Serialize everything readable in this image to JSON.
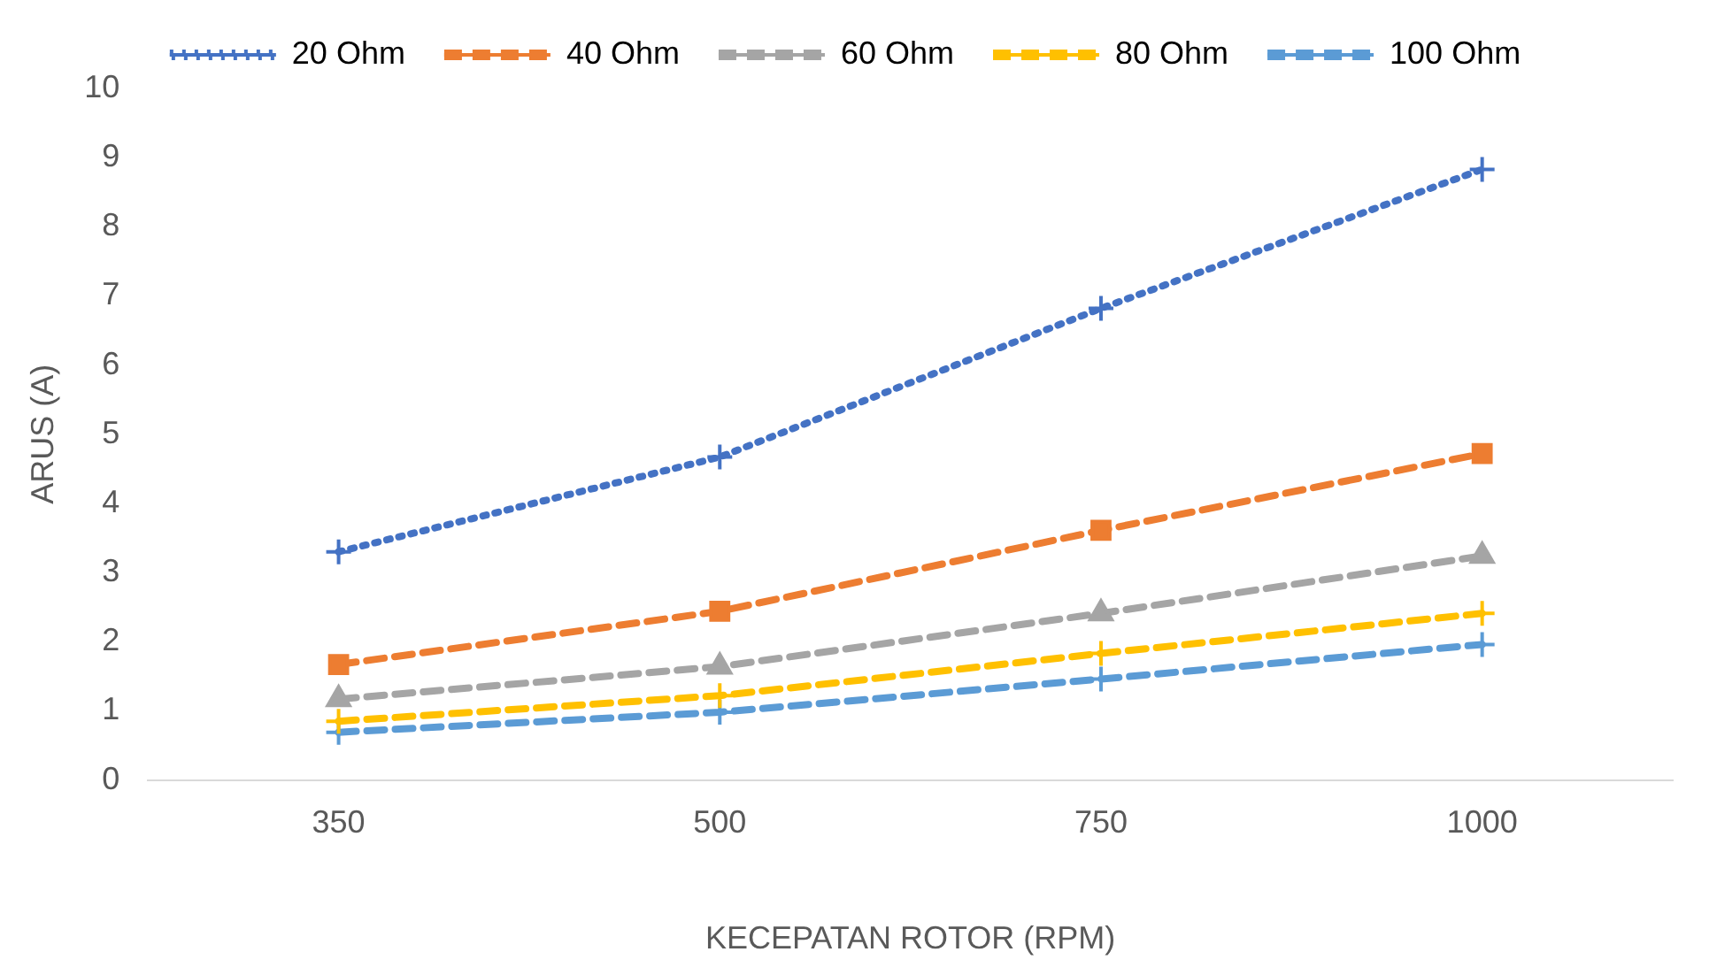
{
  "chart_data": {
    "type": "line",
    "xlabel": "KECEPATAN ROTOR (RPM)",
    "ylabel": "ARUS (A)",
    "categories": [
      "350",
      "500",
      "750",
      "1000"
    ],
    "series": [
      {
        "name": "20 Ohm",
        "color": "#4472c4",
        "values": [
          3.3,
          4.67,
          6.82,
          8.83
        ],
        "marker": "cross",
        "line_style": "dotted"
      },
      {
        "name": "40 Ohm",
        "color": "#ed7d31",
        "values": [
          1.67,
          2.44,
          3.61,
          4.72
        ],
        "marker": "square",
        "line_style": "dashed"
      },
      {
        "name": "60 Ohm",
        "color": "#a5a5a5",
        "values": [
          1.17,
          1.64,
          2.41,
          3.24
        ],
        "marker": "triangle",
        "line_style": "dashed"
      },
      {
        "name": "80 Ohm",
        "color": "#ffc000",
        "values": [
          0.85,
          1.22,
          1.83,
          2.41
        ],
        "marker": "cross",
        "line_style": "dashed"
      },
      {
        "name": "100 Ohm",
        "color": "#5b9bd5",
        "values": [
          0.69,
          0.98,
          1.46,
          1.96
        ],
        "marker": "cross",
        "line_style": "dashed"
      }
    ],
    "ylim": [
      0,
      10
    ],
    "yticks": [
      0,
      1,
      2,
      3,
      4,
      5,
      6,
      7,
      8,
      9,
      10
    ],
    "grid": false,
    "legend": "top"
  }
}
